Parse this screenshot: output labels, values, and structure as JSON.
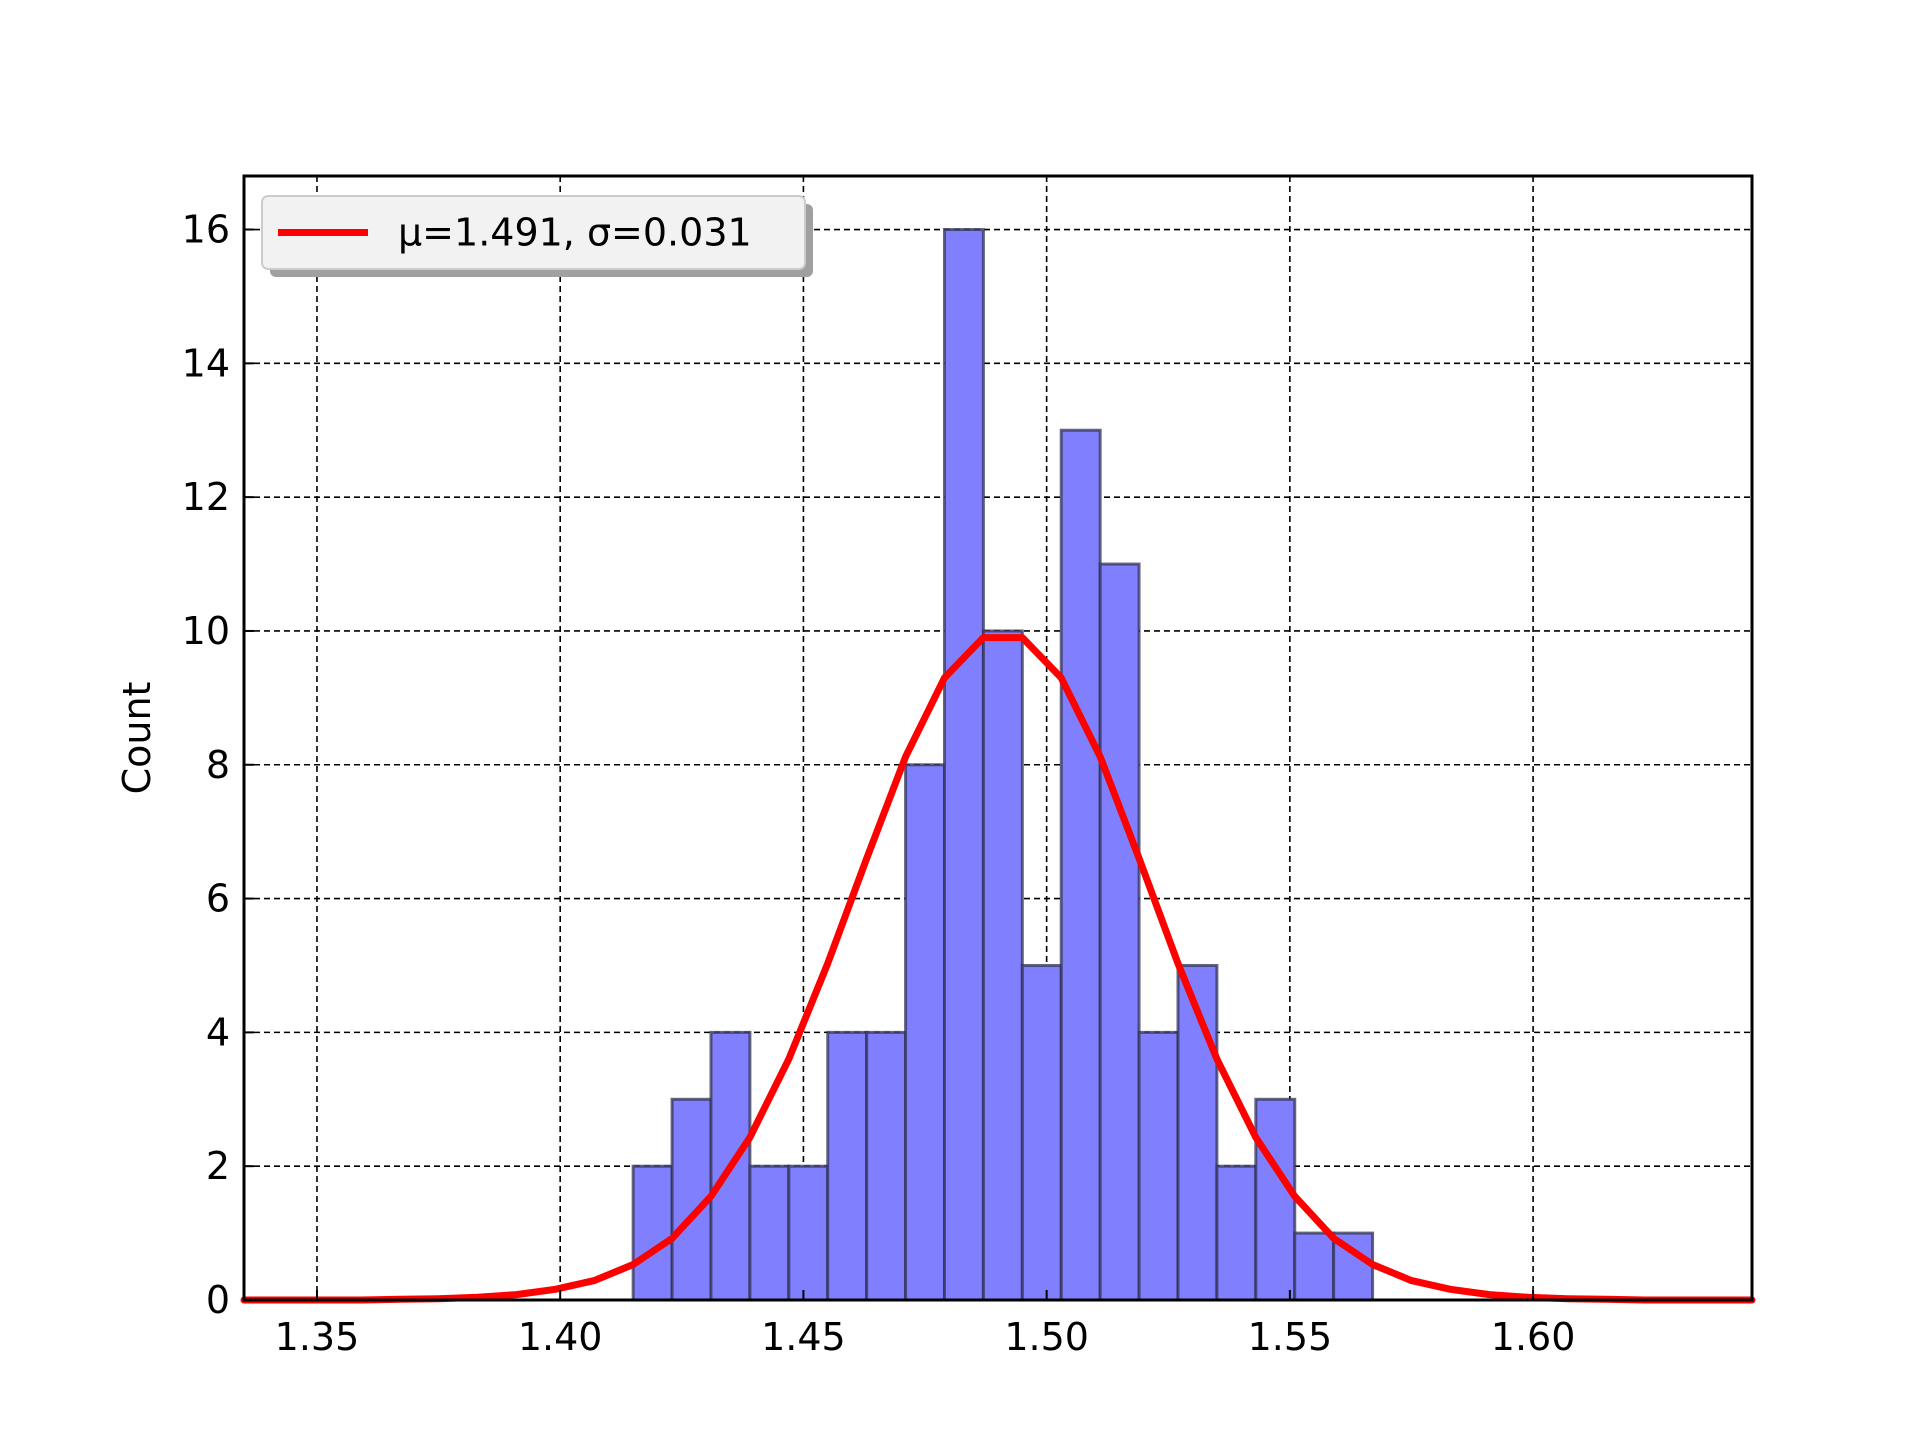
{
  "chart_data": {
    "type": "bar",
    "title": "",
    "xlabel": "",
    "ylabel": "Count",
    "xlim": [
      1.335,
      1.645
    ],
    "ylim": [
      0,
      16.8
    ],
    "xticks": [
      "1.35",
      "1.40",
      "1.45",
      "1.50",
      "1.55",
      "1.60"
    ],
    "yticks": [
      "0",
      "2",
      "4",
      "6",
      "8",
      "10",
      "12",
      "14",
      "16"
    ],
    "grid": true,
    "legend_position": "top-left",
    "bins": {
      "start": 1.415,
      "width": 0.008,
      "counts": [
        2,
        3,
        4,
        2,
        2,
        4,
        4,
        8,
        16,
        10,
        5,
        13,
        11,
        4,
        5,
        2,
        3,
        1,
        1
      ]
    },
    "series": [
      {
        "name": "μ=1.491, σ=0.031",
        "type": "line",
        "color": "#ff0000",
        "x": [
          1.335,
          1.343,
          1.351,
          1.359,
          1.367,
          1.375,
          1.383,
          1.391,
          1.399,
          1.407,
          1.415,
          1.423,
          1.431,
          1.439,
          1.447,
          1.455,
          1.463,
          1.471,
          1.479,
          1.487,
          1.495,
          1.503,
          1.511,
          1.519,
          1.527,
          1.535,
          1.543,
          1.551,
          1.559,
          1.567,
          1.575,
          1.583,
          1.591,
          1.599,
          1.607,
          1.615,
          1.623,
          1.631,
          1.639,
          1.645
        ],
        "y": [
          0.0,
          0.0,
          0.0,
          0.0,
          0.01,
          0.02,
          0.04,
          0.08,
          0.16,
          0.29,
          0.53,
          0.92,
          1.55,
          2.43,
          3.6,
          5.03,
          6.6,
          8.12,
          9.3,
          9.9,
          9.9,
          9.3,
          8.12,
          6.6,
          5.03,
          3.6,
          2.43,
          1.55,
          0.92,
          0.53,
          0.29,
          0.16,
          0.08,
          0.04,
          0.02,
          0.01,
          0.0,
          0.0,
          0.0,
          0.0
        ]
      }
    ],
    "colors": {
      "bar_fill": "#8080ff",
      "bar_edge": "#333355",
      "curve": "#ff0000",
      "legend_bg": "#f2f2f2",
      "legend_shadow": "#a0a0a0"
    }
  }
}
